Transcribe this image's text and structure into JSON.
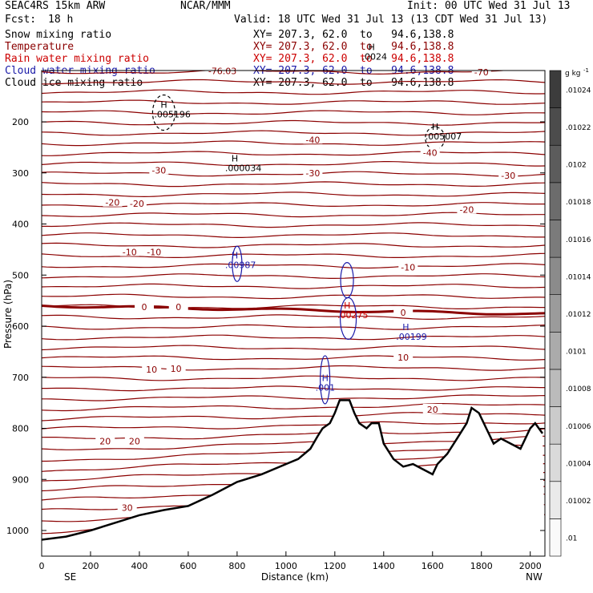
{
  "header": {
    "model": "SEAC4RS 15km ARW",
    "org": "NCAR/MMM",
    "init": "Init: 00 UTC Wed 31 Jul 13",
    "fcst_label": "Fcst:",
    "fcst_value": "18 h",
    "valid": "Valid: 18 UTC Wed 31 Jul 13 (13 CDT Wed 31 Jul 13)"
  },
  "fields": [
    {
      "label": "Snow mixing ratio",
      "xy": "XY= 207.3, 62.0  to   94.6,138.8",
      "color": "#000000"
    },
    {
      "label": "Temperature",
      "xy": "XY= 207.3, 62.0  to   94.6,138.8",
      "color": "#8b0000"
    },
    {
      "label": "Rain water mixing ratio",
      "xy": "XY= 207.3, 62.0  to   94.6,138.8",
      "color": "#cc0000"
    },
    {
      "label": "Cloud water mixing ratio",
      "xy": "XY= 207.3, 62.0  to   94.6,138.8",
      "color": "#1a1aa8"
    },
    {
      "label": "Cloud ice mixing ratio",
      "xy": "XY= 207.3, 62.0  to   94.6,138.8",
      "color": "#000000"
    }
  ],
  "colors": {
    "temperature": "#8b0000",
    "terrain": "#000000",
    "cloud_water": "#1a1aa8",
    "rain": "#cc0000",
    "snow": "#000000"
  },
  "chart_data": {
    "type": "line",
    "title": "",
    "xlabel": "Distance (km)",
    "ylabel": "Pressure (hPa)",
    "x_ticks": [
      "0",
      "200",
      "400",
      "600",
      "800",
      "1000",
      "1200",
      "1400",
      "1600",
      "1800",
      "2000"
    ],
    "y_ticks": [
      "200",
      "300",
      "400",
      "500",
      "600",
      "700",
      "800",
      "900",
      "1000"
    ],
    "xlim": [
      0,
      2060
    ],
    "ylim_hpa": [
      1050,
      100
    ],
    "x_end_labels": {
      "left": "SE",
      "right": "NW"
    },
    "terrain_hpa": [
      [
        0,
        1018
      ],
      [
        100,
        1012
      ],
      [
        200,
        1000
      ],
      [
        300,
        985
      ],
      [
        400,
        970
      ],
      [
        500,
        960
      ],
      [
        600,
        952
      ],
      [
        700,
        930
      ],
      [
        800,
        905
      ],
      [
        900,
        890
      ],
      [
        1000,
        870
      ],
      [
        1050,
        860
      ],
      [
        1100,
        840
      ],
      [
        1130,
        815
      ],
      [
        1150,
        800
      ],
      [
        1180,
        790
      ],
      [
        1200,
        770
      ],
      [
        1220,
        745
      ],
      [
        1260,
        745
      ],
      [
        1280,
        770
      ],
      [
        1300,
        790
      ],
      [
        1330,
        800
      ],
      [
        1350,
        790
      ],
      [
        1380,
        790
      ],
      [
        1400,
        830
      ],
      [
        1440,
        860
      ],
      [
        1480,
        875
      ],
      [
        1520,
        870
      ],
      [
        1560,
        880
      ],
      [
        1600,
        890
      ],
      [
        1620,
        870
      ],
      [
        1660,
        850
      ],
      [
        1700,
        820
      ],
      [
        1740,
        790
      ],
      [
        1760,
        760
      ],
      [
        1790,
        770
      ],
      [
        1820,
        800
      ],
      [
        1850,
        830
      ],
      [
        1880,
        820
      ],
      [
        1920,
        830
      ],
      [
        1960,
        840
      ],
      [
        2000,
        800
      ],
      [
        2020,
        790
      ],
      [
        2050,
        810
      ]
    ],
    "temperature_contour_labels": [
      {
        "value": "-76.03",
        "x": 740,
        "p": 100
      },
      {
        "value": "-70",
        "x": 1800,
        "p": 103
      },
      {
        "value": "-40",
        "x": 1110,
        "p": 235
      },
      {
        "value": "-40",
        "x": 1590,
        "p": 260
      },
      {
        "value": "-30",
        "x": 480,
        "p": 295
      },
      {
        "value": "-30",
        "x": 1110,
        "p": 300
      },
      {
        "value": "-30",
        "x": 1910,
        "p": 305
      },
      {
        "value": "-20",
        "x": 290,
        "p": 358
      },
      {
        "value": "-20",
        "x": 390,
        "p": 360
      },
      {
        "value": "-20",
        "x": 1740,
        "p": 372
      },
      {
        "value": "-10",
        "x": 360,
        "p": 455
      },
      {
        "value": "-10",
        "x": 460,
        "p": 455
      },
      {
        "value": "-10",
        "x": 1500,
        "p": 485
      },
      {
        "value": "0",
        "x": 420,
        "p": 562
      },
      {
        "value": "0",
        "x": 560,
        "p": 562
      },
      {
        "value": "0",
        "x": 1480,
        "p": 573
      },
      {
        "value": "10",
        "x": 450,
        "p": 685
      },
      {
        "value": "10",
        "x": 550,
        "p": 683
      },
      {
        "value": "10",
        "x": 1480,
        "p": 661
      },
      {
        "value": "20",
        "x": 1600,
        "p": 763
      },
      {
        "value": "20",
        "x": 260,
        "p": 825
      },
      {
        "value": "20",
        "x": 380,
        "p": 825
      },
      {
        "value": "30",
        "x": 350,
        "p": 955
      }
    ],
    "maxima_labels": [
      {
        "field": "snow",
        "symbol": "H",
        "value": ".005196",
        "x": 500,
        "p": 185
      },
      {
        "field": "snow",
        "symbol": "H",
        "value": ".005007",
        "x": 1610,
        "p": 228
      },
      {
        "field": "ice",
        "symbol": "H",
        "value": ".000034",
        "x": 790,
        "p": 290
      },
      {
        "field": "cloud_water",
        "symbol": "H",
        "value": ".00987",
        "x": 790,
        "p": 480
      },
      {
        "field": "rain",
        "symbol": "H",
        "value": ".00275",
        "x": 1250,
        "p": 578
      },
      {
        "field": "cloud_water",
        "symbol": "H",
        "value": ".00199",
        "x": 1490,
        "p": 620
      },
      {
        "field": "cloud_water",
        "symbol": "H",
        "value": ".001",
        "x": 1160,
        "p": 720
      },
      {
        "field": "ice",
        "symbol": "H",
        "value": ".0024",
        "x": 1350,
        "p": 72
      }
    ]
  },
  "colorbar": {
    "unit": "g kg",
    "unit_exp": "-1",
    "labels": [
      ".01",
      ".01002",
      ".01004",
      ".01006",
      ".01008",
      ".0101",
      ".01012",
      ".01014",
      ".01016",
      ".01018",
      ".0102",
      ".01022",
      ".01024"
    ]
  }
}
